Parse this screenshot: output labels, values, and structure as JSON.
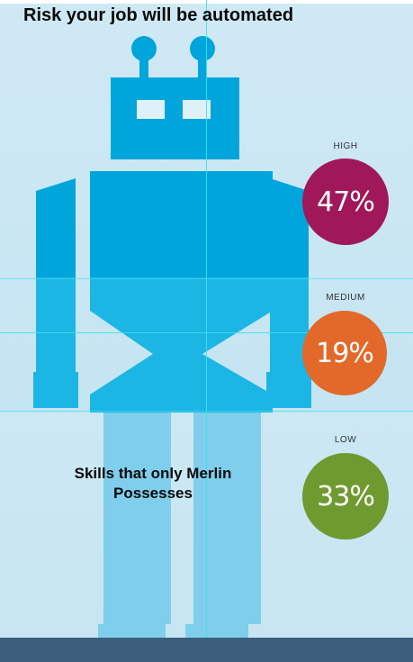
{
  "title": "Risk your job will be automated",
  "skills_text_line1": "Skills that only Merlin",
  "skills_text_line2": "Possesses",
  "levels": [
    {
      "label": "HIGH",
      "value": "47%",
      "color": "#a0185a"
    },
    {
      "label": "MEDIUM",
      "value": "19%",
      "color": "#e2692a"
    },
    {
      "label": "LOW",
      "value": "33%",
      "color": "#6e9a30"
    }
  ],
  "colors": {
    "robot_dark": "#00a5dc",
    "robot_mid": "#1cb6e4",
    "robot_light": "#6ec8ea",
    "bg_top": "#cfe9f4",
    "floor": "#3b5e7c"
  }
}
